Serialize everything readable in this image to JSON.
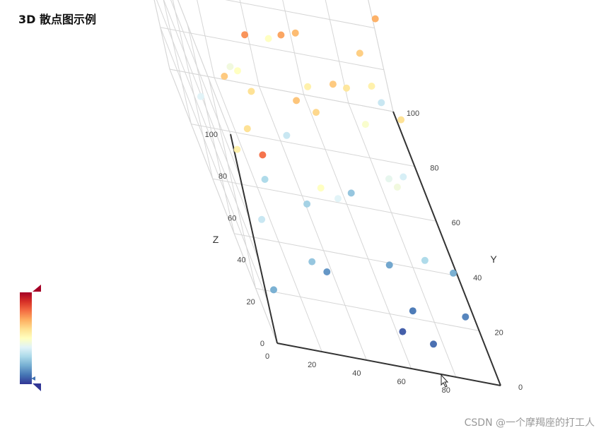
{
  "title": "3D 散点图示例",
  "watermark": "CSDN @一个摩羯座的打工人",
  "chart_data": {
    "type": "scatter3d",
    "xlabel": "",
    "ylabel": "Y",
    "zlabel": "Z",
    "xlim": [
      0,
      100
    ],
    "ylim": [
      0,
      100
    ],
    "zlim": [
      0,
      100
    ],
    "x_ticks": [
      "0",
      "20",
      "40",
      "60",
      "80"
    ],
    "y_ticks": [
      "0",
      "20",
      "40",
      "60",
      "80",
      "100"
    ],
    "z_ticks": [
      "0",
      "20",
      "40",
      "60",
      "80",
      "100"
    ],
    "grid": true,
    "visual_map": {
      "dimension": "z",
      "range": [
        0,
        100
      ],
      "colors": [
        "#313695",
        "#4575b4",
        "#74add1",
        "#abd9e9",
        "#e0f3f8",
        "#ffffbf",
        "#fee090",
        "#fdae61",
        "#f46d43",
        "#d73027",
        "#a50026"
      ]
    },
    "points": [
      [
        5,
        5,
        20
      ],
      [
        10,
        20,
        35
      ],
      [
        8,
        30,
        55
      ],
      [
        15,
        10,
        80
      ],
      [
        20,
        40,
        30
      ],
      [
        25,
        50,
        60
      ],
      [
        30,
        60,
        75
      ],
      [
        35,
        20,
        15
      ],
      [
        40,
        70,
        85
      ],
      [
        45,
        80,
        50
      ],
      [
        50,
        30,
        40
      ],
      [
        55,
        90,
        95
      ],
      [
        60,
        45,
        25
      ],
      [
        65,
        55,
        65
      ],
      [
        70,
        15,
        10
      ],
      [
        75,
        85,
        90
      ],
      [
        80,
        35,
        45
      ],
      [
        85,
        65,
        55
      ],
      [
        90,
        75,
        35
      ],
      [
        95,
        25,
        20
      ],
      [
        12,
        85,
        95
      ],
      [
        18,
        95,
        88
      ],
      [
        22,
        70,
        45
      ],
      [
        28,
        15,
        25
      ],
      [
        33,
        90,
        80
      ],
      [
        38,
        55,
        35
      ],
      [
        42,
        25,
        50
      ],
      [
        48,
        65,
        72
      ],
      [
        52,
        45,
        62
      ],
      [
        58,
        85,
        78
      ],
      [
        62,
        10,
        5
      ],
      [
        68,
        95,
        98
      ],
      [
        72,
        60,
        58
      ],
      [
        78,
        40,
        42
      ],
      [
        82,
        20,
        30
      ],
      [
        88,
        90,
        85
      ],
      [
        92,
        50,
        60
      ],
      [
        97,
        80,
        70
      ],
      [
        3,
        60,
        40
      ],
      [
        7,
        75,
        70
      ],
      [
        14,
        50,
        65
      ],
      [
        26,
        80,
        90
      ],
      [
        36,
        35,
        28
      ],
      [
        46,
        95,
        90
      ],
      [
        56,
        70,
        68
      ],
      [
        66,
        25,
        18
      ],
      [
        76,
        55,
        48
      ],
      [
        86,
        45,
        38
      ],
      [
        94,
        15,
        12
      ],
      [
        16,
        35,
        60
      ],
      [
        24,
        65,
        50
      ],
      [
        44,
        45,
        66
      ],
      [
        64,
        80,
        86
      ],
      [
        74,
        5,
        8
      ],
      [
        84,
        70,
        64
      ],
      [
        54,
        60,
        55
      ]
    ]
  }
}
